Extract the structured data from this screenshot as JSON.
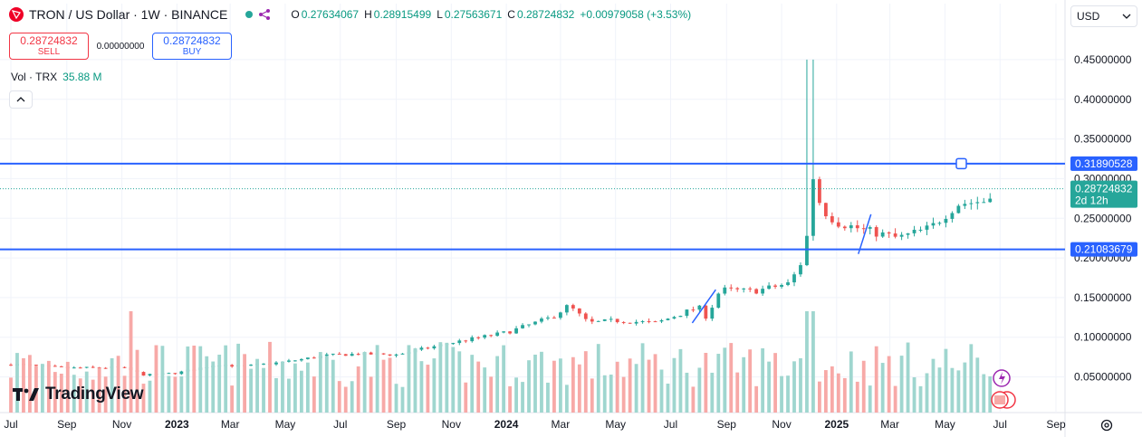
{
  "header": {
    "symbol": "TRON / US Dollar · 1W · BINANCE",
    "ohlc": [
      {
        "label": "O",
        "value": "0.27634067"
      },
      {
        "label": "H",
        "value": "0.28915499"
      },
      {
        "label": "L",
        "value": "0.27563671"
      },
      {
        "label": "C",
        "value": "0.28724832"
      }
    ],
    "change": "+0.00979058 (+3.53%)",
    "icons": {
      "logo": "tron-logo-icon",
      "share": "share-icon"
    }
  },
  "trade": {
    "sell_price": "0.28724832",
    "sell_label": "SELL",
    "spread": "0.00000000",
    "buy_price": "0.28724832",
    "buy_label": "BUY"
  },
  "volume": {
    "label": "Vol · TRX",
    "value": "35.88 M"
  },
  "currency": {
    "label": "USD"
  },
  "branding": {
    "name": "TradingView"
  },
  "colors": {
    "up": "#26a69a",
    "down": "#ef5350",
    "up_vol": "#9fd6cf",
    "down_vol": "#f7a9a7",
    "hline": "#2962ff"
  },
  "chart_data": {
    "type": "candlestick",
    "interval": "1W",
    "x_start": "2022-07-01",
    "x_end": "2025-09-01",
    "x_tick_labels": [
      "Jul",
      "Sep",
      "Nov",
      "2023",
      "Mar",
      "May",
      "Jul",
      "Sep",
      "Nov",
      "2024",
      "Mar",
      "May",
      "Jul",
      "Sep",
      "Nov",
      "2025",
      "Mar",
      "May",
      "Jul",
      "Sep"
    ],
    "x_tick_dates": [
      "2022-07-01",
      "2022-09-01",
      "2022-11-01",
      "2023-01-01",
      "2023-03-01",
      "2023-05-01",
      "2023-07-01",
      "2023-09-01",
      "2023-11-01",
      "2024-01-01",
      "2024-03-01",
      "2024-05-01",
      "2024-07-01",
      "2024-09-01",
      "2024-11-01",
      "2025-01-01",
      "2025-03-01",
      "2025-05-01",
      "2025-07-01",
      "2025-09-01"
    ],
    "y_ticks": [
      "0.45000000",
      "0.40000000",
      "0.35000000",
      "0.30000000",
      "0.25000000",
      "0.20000000",
      "0.15000000",
      "0.10000000",
      "0.05000000"
    ],
    "y_tick_values": [
      0.45,
      0.4,
      0.35,
      0.3,
      0.25,
      0.2,
      0.15,
      0.1,
      0.05
    ],
    "ylim": [
      0.0,
      0.47
    ],
    "grid": true,
    "last_price": {
      "value": 0.28724832,
      "label": "0.28724832",
      "countdown": "2d 12h"
    },
    "horizontal_lines": [
      {
        "value": 0.31890528,
        "label": "0.31890528"
      },
      {
        "value": 0.21083679,
        "label": "0.21083679"
      }
    ],
    "close_anchors": [
      [
        "2022-07-01",
        0.066
      ],
      [
        "2022-09-01",
        0.061
      ],
      [
        "2022-11-01",
        0.062
      ],
      [
        "2022-11-27",
        0.052
      ],
      [
        "2023-01-01",
        0.055
      ],
      [
        "2023-02-15",
        0.066
      ],
      [
        "2023-03-15",
        0.063
      ],
      [
        "2023-05-01",
        0.069
      ],
      [
        "2023-06-15",
        0.077
      ],
      [
        "2023-07-20",
        0.079
      ],
      [
        "2023-09-01",
        0.078
      ],
      [
        "2023-11-01",
        0.093
      ],
      [
        "2024-01-01",
        0.106
      ],
      [
        "2024-02-20",
        0.125
      ],
      [
        "2024-03-10",
        0.14
      ],
      [
        "2024-04-01",
        0.118
      ],
      [
        "2024-05-01",
        0.121
      ],
      [
        "2024-06-15",
        0.118
      ],
      [
        "2024-08-01",
        0.138
      ],
      [
        "2024-08-10",
        0.125
      ],
      [
        "2024-08-25",
        0.16
      ],
      [
        "2024-10-01",
        0.158
      ],
      [
        "2024-11-10",
        0.168
      ],
      [
        "2024-11-28",
        0.205
      ],
      [
        "2024-12-03",
        0.315
      ],
      [
        "2024-12-15",
        0.262
      ],
      [
        "2025-01-01",
        0.245
      ],
      [
        "2025-02-01",
        0.235
      ],
      [
        "2025-03-10",
        0.225
      ],
      [
        "2025-04-15",
        0.238
      ],
      [
        "2025-05-15",
        0.268
      ],
      [
        "2025-06-15",
        0.272
      ],
      [
        "2025-06-23",
        0.287
      ]
    ],
    "volume_max_label": "relative"
  }
}
